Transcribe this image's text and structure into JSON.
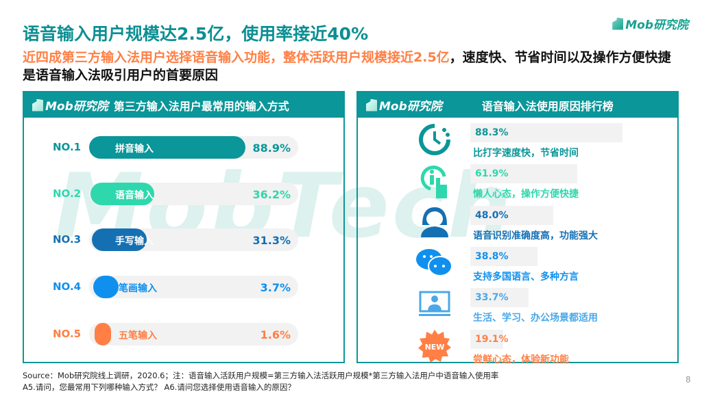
{
  "title": "语音输入用户规模达2.5亿，使用率接近40%",
  "subtitle_highlight": "近四成第三方输入法用户选择语音输入功能，整体活跃用户规模接近2.5亿",
  "subtitle_rest": "，速度快、节省时间以及操作方便快捷是语音输入法吸引用户的首要原因",
  "logo": "Mob研究院",
  "watermark": "MobTech",
  "left_panel": {
    "logo": "Mob研究院",
    "title": "第三方输入法用户最常用的输入方式"
  },
  "right_panel": {
    "logo": "Mob研究院",
    "title": "语音输入法使用原因排行榜"
  },
  "colors": {
    "teal": "#0B9699",
    "green": "#2ED8AC",
    "navy": "#1570B3",
    "blue": "#1090EE",
    "orange": "#FF7F45",
    "lightblue": "#4AA8E8"
  },
  "chart_data": [
    {
      "type": "bar",
      "categories": [
        "拼音输入",
        "语音输入",
        "手写输入",
        "笔画输入",
        "五笔输入"
      ],
      "ranks": [
        "NO.1",
        "NO.2",
        "NO.3",
        "NO.4",
        "NO.5"
      ],
      "values": [
        88.9,
        36.2,
        31.3,
        3.7,
        1.6
      ],
      "labels": [
        "88.9%",
        "36.2%",
        "31.3%",
        "3.7%",
        "1.6%"
      ]
    },
    {
      "type": "bar",
      "categories": [
        "比打字速度快，节省时间",
        "懒人心态，操作方便快捷",
        "语音识别准确度高，功能强大",
        "支持多国语言、多种方言",
        "生活、学习、办公场景都适用",
        "尝鲜心态，体验新功能"
      ],
      "values": [
        88.3,
        61.9,
        48.0,
        38.8,
        33.7,
        19.1
      ],
      "labels": [
        "88.3%",
        "61.9%",
        "48.0%",
        "38.8%",
        "33.7%",
        "19.1%"
      ],
      "icons": [
        "clock-icon",
        "tap-info-icon",
        "headset-agent-icon",
        "chat-bubbles-icon",
        "monitor-person-icon",
        "new-badge-icon"
      ],
      "new_badge": "NEW"
    }
  ],
  "footer": {
    "line1": "Source：Mob研究院线上调研，2020.6；注：语音输入活跃用户规模=第三方输入法活跃用户规模*第三方输入法用户中语音输入使用率",
    "line2": "A5.请问，您最常用下列哪种输入方式？ A6.请问您选择使用语音输入的原因？"
  },
  "page_number": "8"
}
